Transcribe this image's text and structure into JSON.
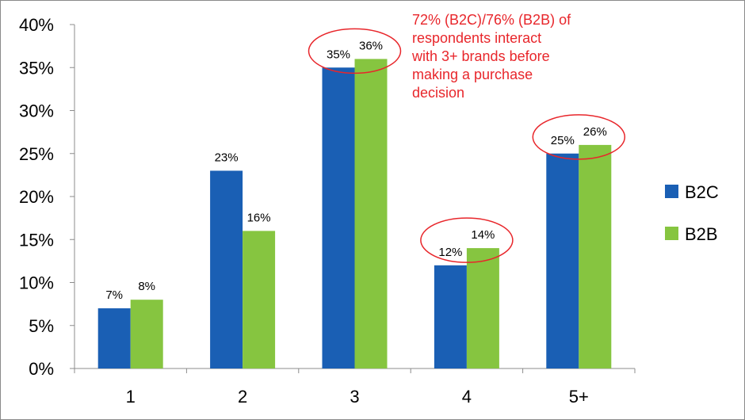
{
  "chart_data": {
    "type": "bar",
    "categories": [
      "1",
      "2",
      "3",
      "4",
      "5+"
    ],
    "series": [
      {
        "name": "B2C",
        "values": [
          7,
          23,
          35,
          12,
          25
        ],
        "color": "#1a5fb4"
      },
      {
        "name": "B2B",
        "values": [
          8,
          16,
          36,
          14,
          26
        ],
        "color": "#86c540"
      }
    ],
    "data_labels": {
      "B2C": [
        "7%",
        "23%",
        "35%",
        "12%",
        "25%"
      ],
      "B2B": [
        "8%",
        "16%",
        "36%",
        "14%",
        "26%"
      ]
    },
    "ylim": [
      0,
      40
    ],
    "yticks": [
      0,
      5,
      10,
      15,
      20,
      25,
      30,
      35,
      40
    ],
    "ytick_labels": [
      "0%",
      "5%",
      "10%",
      "15%",
      "20%",
      "25%",
      "30%",
      "35%",
      "40%"
    ],
    "title": "",
    "xlabel": "",
    "ylabel": "",
    "grid": false,
    "legend_position": "right",
    "highlighted_categories": [
      "3",
      "4",
      "5+"
    ],
    "highlight_color": "#e8262b",
    "annotation": {
      "lines": [
        "72% (B2C)/76% (B2B) of",
        "respondents interact",
        "with 3+ brands before",
        "making a purchase",
        "decision"
      ],
      "color": "#e8262b"
    }
  }
}
